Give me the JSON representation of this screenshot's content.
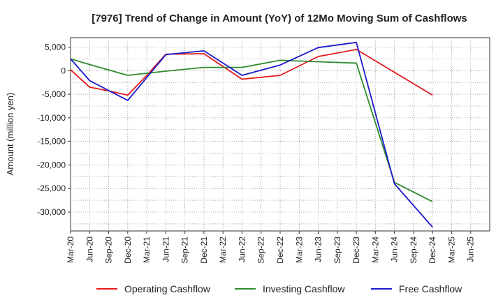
{
  "chart_data": {
    "type": "line",
    "title": "[7976]  Trend of Change in Amount (YoY) of 12Mo Moving Sum of Cashflows",
    "xlabel": "",
    "ylabel": "Amount (million yen)",
    "ylim": [
      -34000,
      7000
    ],
    "yticks": [
      5000,
      0,
      -5000,
      -10000,
      -15000,
      -20000,
      -25000,
      -30000
    ],
    "ytick_labels": [
      "5,000",
      "0",
      "-5,000",
      "-10,000",
      "-15,000",
      "-20,000",
      "-25,000",
      "-30,000"
    ],
    "categories": [
      "Mar-20",
      "Jun-20",
      "Sep-20",
      "Dec-20",
      "Mar-21",
      "Jun-21",
      "Sep-21",
      "Dec-21",
      "Mar-22",
      "Jun-22",
      "Sep-22",
      "Dec-22",
      "Mar-23",
      "Jun-23",
      "Sep-23",
      "Dec-23",
      "Mar-24",
      "Jun-24",
      "Sep-24",
      "Dec-24",
      "Mar-25",
      "Jun-25"
    ],
    "grid": true,
    "legend_position": "bottom",
    "series": [
      {
        "name": "Operating Cashflow",
        "color": "#e41a1c",
        "values": [
          200,
          -3500,
          -4300,
          -5200,
          -1000,
          3500,
          null,
          3600,
          null,
          -1800,
          null,
          -1000,
          null,
          3000,
          null,
          4500,
          null,
          null,
          null,
          -5200,
          null,
          null
        ]
      },
      {
        "name": "Investing Cashflow",
        "color": "#2e8b2e",
        "values": [
          2500,
          1300,
          null,
          -1000,
          null,
          -100,
          null,
          700,
          null,
          700,
          null,
          2200,
          null,
          1900,
          null,
          1600,
          null,
          -23700,
          null,
          -27800,
          null,
          null
        ]
      },
      {
        "name": "Free Cashflow",
        "color": "#1a1acd",
        "values": [
          2500,
          -2100,
          null,
          -6300,
          null,
          3400,
          null,
          4200,
          null,
          -1000,
          null,
          1200,
          null,
          4900,
          null,
          6000,
          null,
          -24000,
          null,
          -33200,
          null,
          null
        ]
      }
    ]
  }
}
